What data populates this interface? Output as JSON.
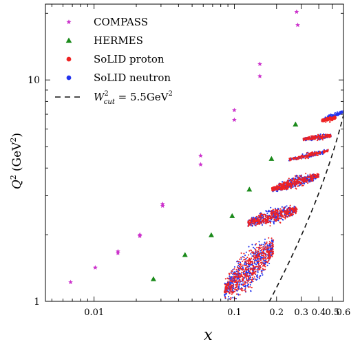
{
  "chart_data": {
    "type": "scatter",
    "xscale": "log",
    "yscale": "log",
    "xlim": [
      0.0045,
      0.6
    ],
    "ylim": [
      1,
      22
    ],
    "xlabel": "x",
    "ylabel_main": "Q",
    "ylabel_sup": "2",
    "ylabel_unit": "(GeV",
    "ylabel_unit_sup": "2",
    "ylabel_unit_close": ")",
    "xticks": [
      {
        "value": 0.01,
        "label": "0.01"
      },
      {
        "value": 0.1,
        "label": "0.1"
      },
      {
        "value": 0.2,
        "label": "0.2"
      },
      {
        "value": 0.3,
        "label": "0.3"
      },
      {
        "value": 0.4,
        "label": "0.4"
      },
      {
        "value": 0.5,
        "label": "0.5"
      },
      {
        "value": 0.6,
        "label": "0.6"
      }
    ],
    "yticks": [
      {
        "value": 1,
        "label": "1"
      },
      {
        "value": 10,
        "label": "10"
      }
    ],
    "legend_position": "top-left",
    "grid": false,
    "series": [
      {
        "name": "COMPASS",
        "marker": "star",
        "color": "#cc33cc",
        "points": [
          [
            0.0068,
            1.22
          ],
          [
            0.0102,
            1.42
          ],
          [
            0.0148,
            1.68
          ],
          [
            0.0148,
            1.65
          ],
          [
            0.0212,
            2.0
          ],
          [
            0.0212,
            1.97
          ],
          [
            0.0308,
            2.75
          ],
          [
            0.0308,
            2.7
          ],
          [
            0.0575,
            4.55
          ],
          [
            0.0575,
            4.15
          ],
          [
            0.1,
            7.3
          ],
          [
            0.1,
            6.6
          ],
          [
            0.152,
            11.8
          ],
          [
            0.152,
            10.4
          ],
          [
            0.278,
            20.3
          ],
          [
            0.283,
            17.7
          ]
        ]
      },
      {
        "name": "HERMES",
        "marker": "triangle",
        "color": "#1a8a1a",
        "points": [
          [
            0.0265,
            1.26
          ],
          [
            0.0445,
            1.62
          ],
          [
            0.0685,
            1.99
          ],
          [
            0.0965,
            2.43
          ],
          [
            0.128,
            3.2
          ],
          [
            0.184,
            4.4
          ],
          [
            0.273,
            6.3
          ]
        ]
      },
      {
        "name": "SoLID proton",
        "marker": "dot",
        "color": "#ee2222",
        "bands": [
          {
            "x": [
              0.085,
              0.19
            ],
            "q2": [
              1.12,
              1.75
            ]
          },
          {
            "x": [
              0.125,
              0.28
            ],
            "q2": [
              2.25,
              2.6
            ]
          },
          {
            "x": [
              0.185,
              0.4
            ],
            "q2": [
              3.2,
              3.7
            ]
          },
          {
            "x": [
              0.245,
              0.47
            ],
            "q2": [
              4.35,
              4.8
            ]
          },
          {
            "x": [
              0.31,
              0.49
            ],
            "q2": [
              5.4,
              5.6
            ]
          },
          {
            "x": [
              0.42,
              0.53
            ],
            "q2": [
              6.55,
              6.75
            ]
          }
        ]
      },
      {
        "name": "SoLID neutron",
        "marker": "dot",
        "color": "#2233ee",
        "bands": [
          {
            "x": [
              0.085,
              0.19
            ],
            "q2": [
              1.12,
              1.75
            ]
          },
          {
            "x": [
              0.125,
              0.28
            ],
            "q2": [
              2.25,
              2.6
            ]
          },
          {
            "x": [
              0.185,
              0.4
            ],
            "q2": [
              3.2,
              3.7
            ]
          },
          {
            "x": [
              0.245,
              0.47
            ],
            "q2": [
              4.35,
              4.8
            ]
          },
          {
            "x": [
              0.31,
              0.49
            ],
            "q2": [
              5.4,
              5.6
            ]
          },
          {
            "x": [
              0.42,
              0.6
            ],
            "q2": [
              6.55,
              7.2
            ]
          }
        ]
      },
      {
        "name": "W_cut^2 = 5.5GeV^2",
        "marker": "dashed-line",
        "color": "#111111",
        "W2": 5.5,
        "proton_mass_GeV": 0.938
      }
    ],
    "legend": [
      {
        "series": 0,
        "text": "COMPASS"
      },
      {
        "series": 1,
        "text": "HERMES"
      },
      {
        "series": 2,
        "text": "SoLID proton"
      },
      {
        "series": 3,
        "text": "SoLID neutron"
      },
      {
        "series": 4,
        "text_main": "W",
        "text_sup": "2",
        "text_sub": "cut",
        "text_eq": " = 5.5GeV",
        "text_eq_sup": "2"
      }
    ]
  }
}
